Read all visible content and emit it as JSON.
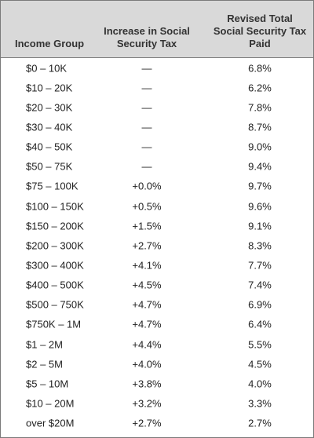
{
  "table": {
    "headers": {
      "income_group": "Income Group",
      "increase_line1": "Increase in Social",
      "increase_line2": "Security Tax",
      "revised_line1": "Revised Total",
      "revised_line2": "Social Security Tax",
      "revised_line3": "Paid"
    },
    "rows": [
      {
        "income": "$0 – 10K",
        "increase": "—",
        "revised": "6.8%"
      },
      {
        "income": "$10 – 20K",
        "increase": "—",
        "revised": "6.2%"
      },
      {
        "income": "$20 – 30K",
        "increase": "—",
        "revised": "7.8%"
      },
      {
        "income": "$30 – 40K",
        "increase": "—",
        "revised": "8.7%"
      },
      {
        "income": "$40 – 50K",
        "increase": "—",
        "revised": "9.0%"
      },
      {
        "income": "$50 – 75K",
        "increase": "—",
        "revised": "9.4%"
      },
      {
        "income": "$75 – 100K",
        "increase": "+0.0%",
        "revised": "9.7%"
      },
      {
        "income": "$100 – 150K",
        "increase": "+0.5%",
        "revised": "9.6%"
      },
      {
        "income": "$150 – 200K",
        "increase": "+1.5%",
        "revised": "9.1%"
      },
      {
        "income": "$200 – 300K",
        "increase": "+2.7%",
        "revised": "8.3%"
      },
      {
        "income": "$300 – 400K",
        "increase": "+4.1%",
        "revised": "7.7%"
      },
      {
        "income": "$400 – 500K",
        "increase": "+4.5%",
        "revised": "7.4%"
      },
      {
        "income": "$500 – 750K",
        "increase": "+4.7%",
        "revised": "6.9%"
      },
      {
        "income": "$750K – 1M",
        "increase": "+4.7%",
        "revised": "6.4%"
      },
      {
        "income": "$1 – 2M",
        "increase": "+4.4%",
        "revised": "5.5%"
      },
      {
        "income": "$2 – 5M",
        "increase": "+4.0%",
        "revised": "4.5%"
      },
      {
        "income": "$5 – 10M",
        "increase": "+3.8%",
        "revised": "4.0%"
      },
      {
        "income": "$10 – 20M",
        "increase": "+3.2%",
        "revised": "3.3%"
      },
      {
        "income": "over $20M",
        "increase": "+2.7%",
        "revised": "2.7%"
      }
    ]
  },
  "colors": {
    "header_bg": "#d9d9d9",
    "border": "#7a7a7a"
  }
}
